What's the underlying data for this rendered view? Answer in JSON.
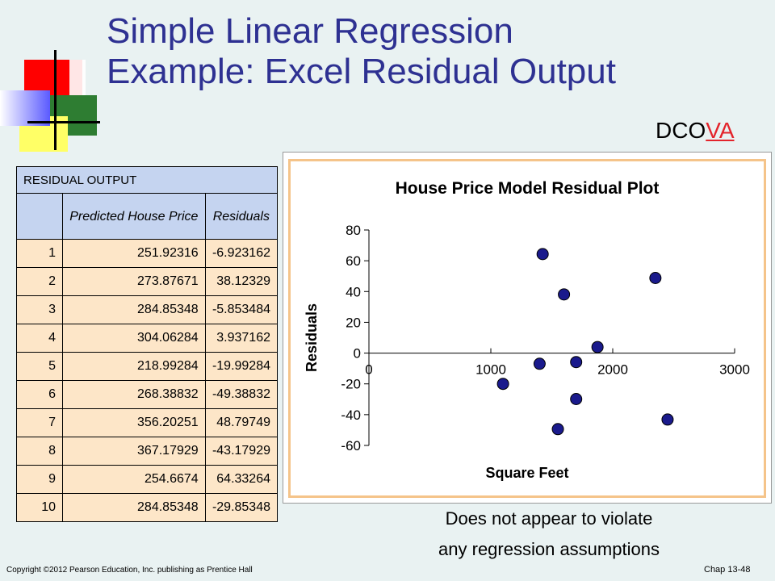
{
  "slide": {
    "title_line1": "Simple Linear Regression",
    "title_line2": "Example:  Excel Residual Output",
    "dcova_prefix": "DCO",
    "dcova_highlight": "VA",
    "note_line1": "Does not appear to violate",
    "note_line2": "any regression assumptions",
    "copyright": "Copyright ©2012 Pearson Education, Inc. publishing as Prentice Hall",
    "chapter": "Chap 13-48"
  },
  "colors": {
    "title": "#2e3192",
    "background": "#e9f2f2",
    "point": "#1a1a8c",
    "table_header": "#c5d4f0",
    "table_body": "#fde6c8",
    "chart_border": "#f5c48a",
    "highlight": "#e3242b"
  },
  "table": {
    "caption": "RESIDUAL OUTPUT",
    "col_predicted": "Predicted House Price",
    "col_residuals": "Residuals",
    "rows": [
      {
        "obs": "1",
        "predicted": "251.92316",
        "residual": "-6.923162"
      },
      {
        "obs": "2",
        "predicted": "273.87671",
        "residual": "38.12329"
      },
      {
        "obs": "3",
        "predicted": "284.85348",
        "residual": "-5.853484"
      },
      {
        "obs": "4",
        "predicted": "304.06284",
        "residual": "3.937162"
      },
      {
        "obs": "5",
        "predicted": "218.99284",
        "residual": "-19.99284"
      },
      {
        "obs": "6",
        "predicted": "268.38832",
        "residual": "-49.38832"
      },
      {
        "obs": "7",
        "predicted": "356.20251",
        "residual": "48.79749"
      },
      {
        "obs": "8",
        "predicted": "367.17929",
        "residual": "-43.17929"
      },
      {
        "obs": "9",
        "predicted": "254.6674",
        "residual": "64.33264"
      },
      {
        "obs": "10",
        "predicted": "284.85348",
        "residual": "-29.85348"
      }
    ]
  },
  "chart_data": {
    "type": "scatter",
    "title": "House Price Model Residual Plot",
    "xlabel": "Square Feet",
    "ylabel": "Residuals",
    "xlim": [
      0,
      3000
    ],
    "ylim": [
      -60,
      80
    ],
    "xticks": [
      0,
      1000,
      2000,
      3000
    ],
    "yticks": [
      80,
      60,
      40,
      20,
      0,
      -20,
      -40,
      -60
    ],
    "grid": false,
    "points": [
      {
        "x": 1400,
        "y": -6.923162
      },
      {
        "x": 1600,
        "y": 38.12329
      },
      {
        "x": 1700,
        "y": -5.853484
      },
      {
        "x": 1875,
        "y": 3.937162
      },
      {
        "x": 1100,
        "y": -19.99284
      },
      {
        "x": 1550,
        "y": -49.38832
      },
      {
        "x": 2350,
        "y": 48.79749
      },
      {
        "x": 2450,
        "y": -43.17929
      },
      {
        "x": 1425,
        "y": 64.33264
      },
      {
        "x": 1700,
        "y": -29.85348
      }
    ]
  }
}
